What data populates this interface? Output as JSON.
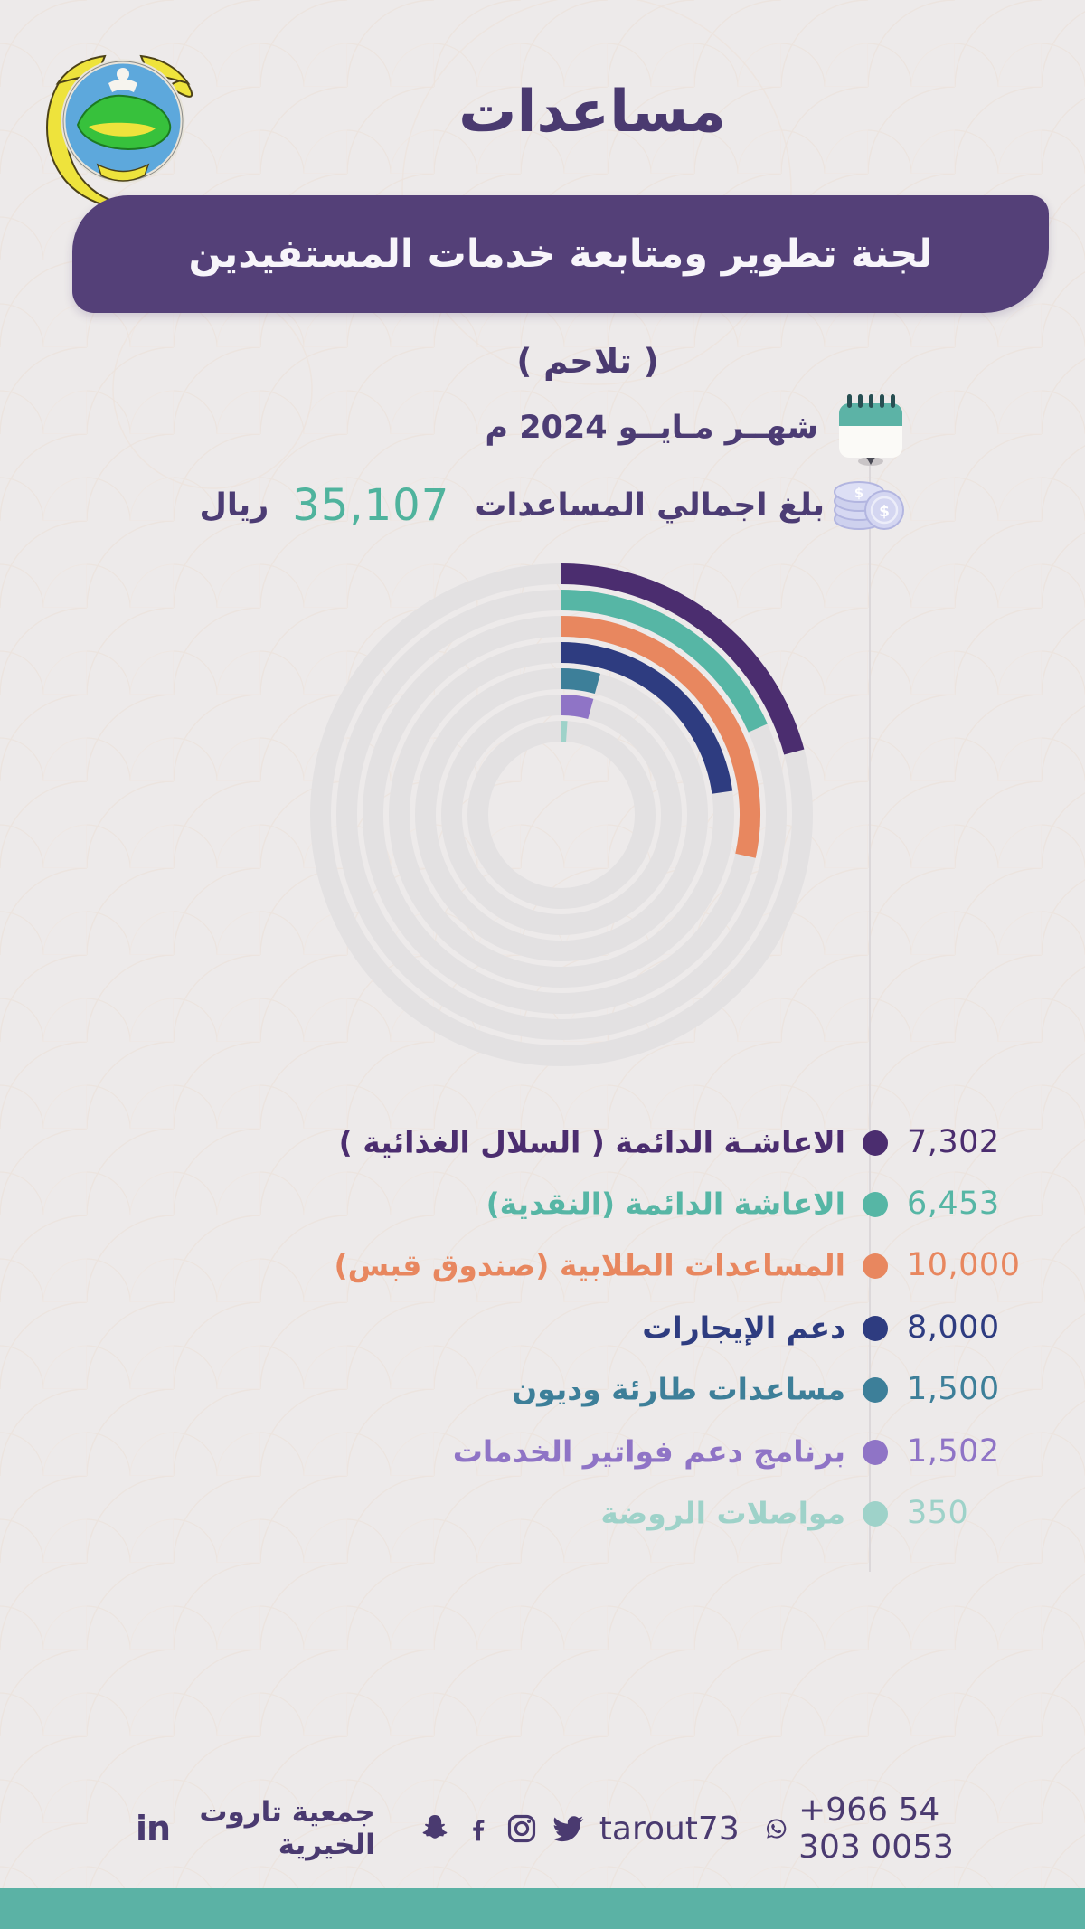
{
  "page": {
    "title": "مساعدات",
    "banner": "لجنة تطوير ومتابعة خدمات المستفيدين",
    "subtitle": "( تلاحم )",
    "month_label": "شهــر مـايــو 2024 م",
    "total_label": "بلغ اجمالي المساعدات",
    "total_value": "35,107",
    "total_unit": "ريال"
  },
  "chart_data": {
    "type": "radial-bar",
    "title": "مساعدات لجنة تطوير ومتابعة خدمات المستفيدين ( تلاحم ) - مايو 2024",
    "total": 35107,
    "angle_rule": "arc_degrees = value / total * 360, start at 12 o'clock, clockwise",
    "track_color": "#e3e1e2",
    "series": [
      {
        "label": "الاعاشـة الدائمة ( السلال الغذائية )",
        "value": 7302,
        "display": "7,302",
        "color": "#4b2d6f"
      },
      {
        "label": "الاعاشة الدائمة (النقدية)",
        "value": 6453,
        "display": "6,453",
        "color": "#56b6a5"
      },
      {
        "label": "المساعدات الطلابية (صندوق قبس)",
        "value": 10000,
        "display": "10,000",
        "color": "#e8875f"
      },
      {
        "label": "دعم الإيجارات",
        "value": 8000,
        "display": "8,000",
        "color": "#2e3c80"
      },
      {
        "label": "مساعدات طارئة وديون",
        "value": 1500,
        "display": "1,500",
        "color": "#3d7f99"
      },
      {
        "label": "برنامج دعم فواتير الخدمات",
        "value": 1502,
        "display": "1,502",
        "color": "#8f74c6"
      },
      {
        "label": "مواصلات الروضة",
        "value": 350,
        "display": "350",
        "color": "#9ed2c9"
      }
    ]
  },
  "icons": {
    "calendar": "calendar-icon",
    "coins": "money-coins-icon",
    "linkedin": "linkedin-icon",
    "snapchat": "snapchat-icon",
    "facebook": "facebook-icon",
    "instagram": "instagram-icon",
    "twitter": "twitter-icon",
    "whatsapp": "whatsapp-icon"
  },
  "footer": {
    "org_name": "جمعية تاروت الخيرية",
    "social_handle": "tarout73",
    "phone": "+966 54 303 0053"
  },
  "colors": {
    "background": "#edeaea",
    "banner_purple": "#544078",
    "title_purple": "#4a3a70",
    "total_teal": "#4fb39d",
    "bottom_bar_teal": "#5bb2a5",
    "pattern_peach": "#eadacd"
  }
}
